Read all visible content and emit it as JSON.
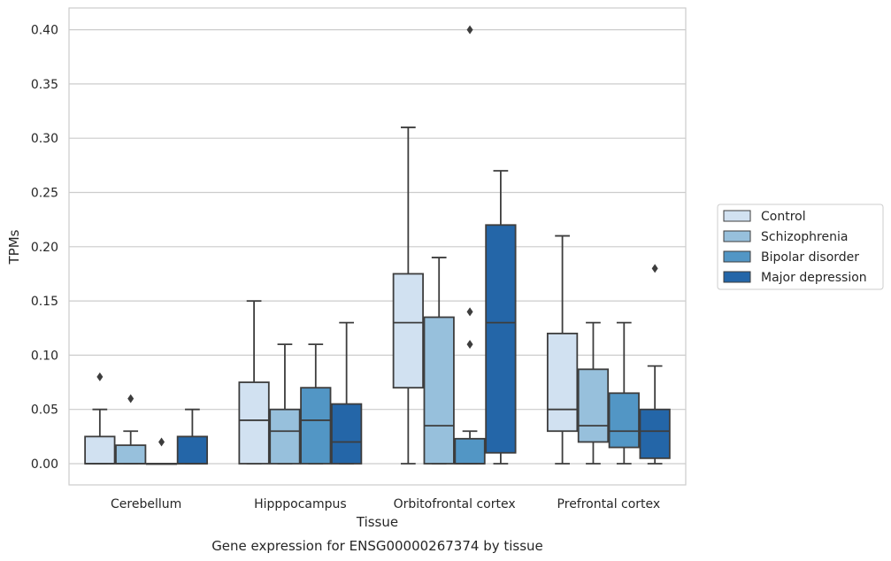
{
  "chart_data": {
    "type": "box",
    "xlabel": "Tissue",
    "ylabel": "TPMs",
    "caption": "Gene expression for ENSG00000267374 by tissue",
    "ylim": [
      -0.02,
      0.42
    ],
    "yticks": [
      "0.00",
      "0.05",
      "0.10",
      "0.15",
      "0.20",
      "0.25",
      "0.30",
      "0.35",
      "0.40"
    ],
    "grid": true,
    "legend_position": "right",
    "categories": [
      "Cerebellum",
      "Hipppocampus",
      "Orbitofrontal cortex",
      "Prefrontal cortex"
    ],
    "series": [
      {
        "name": "Control",
        "color": "#d1e1f1",
        "boxes": [
          {
            "q1": 0.0,
            "median": 0.0,
            "q3": 0.025,
            "whisker_low": 0.0,
            "whisker_high": 0.05,
            "outliers": [
              0.08
            ]
          },
          {
            "q1": 0.0,
            "median": 0.04,
            "q3": 0.075,
            "whisker_low": 0.0,
            "whisker_high": 0.15,
            "outliers": []
          },
          {
            "q1": 0.07,
            "median": 0.13,
            "q3": 0.175,
            "whisker_low": 0.0,
            "whisker_high": 0.31,
            "outliers": []
          },
          {
            "q1": 0.03,
            "median": 0.05,
            "q3": 0.12,
            "whisker_low": 0.0,
            "whisker_high": 0.21,
            "outliers": []
          }
        ]
      },
      {
        "name": "Schizophrenia",
        "color": "#97c0dc",
        "boxes": [
          {
            "q1": 0.0,
            "median": 0.0,
            "q3": 0.017,
            "whisker_low": 0.0,
            "whisker_high": 0.03,
            "outliers": [
              0.06
            ]
          },
          {
            "q1": 0.0,
            "median": 0.03,
            "q3": 0.05,
            "whisker_low": 0.0,
            "whisker_high": 0.11,
            "outliers": []
          },
          {
            "q1": 0.0,
            "median": 0.035,
            "q3": 0.135,
            "whisker_low": 0.0,
            "whisker_high": 0.19,
            "outliers": []
          },
          {
            "q1": 0.02,
            "median": 0.035,
            "q3": 0.087,
            "whisker_low": 0.0,
            "whisker_high": 0.13,
            "outliers": []
          }
        ]
      },
      {
        "name": "Bipolar disorder",
        "color": "#5296c5",
        "boxes": [
          {
            "q1": 0.0,
            "median": 0.0,
            "q3": 0.0,
            "whisker_low": 0.0,
            "whisker_high": 0.0,
            "outliers": [
              0.02
            ]
          },
          {
            "q1": 0.0,
            "median": 0.04,
            "q3": 0.07,
            "whisker_low": 0.0,
            "whisker_high": 0.11,
            "outliers": []
          },
          {
            "q1": 0.0,
            "median": 0.0,
            "q3": 0.023,
            "whisker_low": 0.0,
            "whisker_high": 0.03,
            "outliers": [
              0.11,
              0.14,
              0.4
            ]
          },
          {
            "q1": 0.015,
            "median": 0.03,
            "q3": 0.065,
            "whisker_low": 0.0,
            "whisker_high": 0.13,
            "outliers": []
          }
        ]
      },
      {
        "name": "Major depression",
        "color": "#2466a8",
        "boxes": [
          {
            "q1": 0.0,
            "median": 0.0,
            "q3": 0.025,
            "whisker_low": 0.0,
            "whisker_high": 0.05,
            "outliers": []
          },
          {
            "q1": 0.0,
            "median": 0.02,
            "q3": 0.055,
            "whisker_low": 0.0,
            "whisker_high": 0.13,
            "outliers": []
          },
          {
            "q1": 0.01,
            "median": 0.13,
            "q3": 0.22,
            "whisker_low": 0.0,
            "whisker_high": 0.27,
            "outliers": []
          },
          {
            "q1": 0.005,
            "median": 0.03,
            "q3": 0.05,
            "whisker_low": 0.0,
            "whisker_high": 0.09,
            "outliers": [
              0.18
            ]
          }
        ]
      }
    ]
  }
}
